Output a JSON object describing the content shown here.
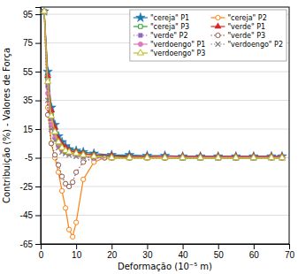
{
  "chart_data": {
    "type": "line",
    "x_label": "Deformação (10⁻⁵ m)",
    "y_label": "Contribuição (%) - Valores de Força",
    "xlim": [
      0,
      70
    ],
    "ylim": [
      -65,
      100
    ],
    "xticks": [
      0,
      10,
      20,
      30,
      40,
      50,
      60,
      70
    ],
    "yticks": [
      -65,
      -45,
      -25,
      -5,
      15,
      35,
      55,
      75,
      95
    ],
    "grid": true,
    "legend": "upper right",
    "series": [
      {
        "name": "\"cereja\" P1",
        "marker": "star",
        "line_style": "solid",
        "x": [
          1,
          2,
          3,
          4,
          5,
          6,
          7,
          8,
          10,
          12,
          15,
          20,
          25,
          30,
          35,
          40,
          45,
          50,
          55,
          60,
          65,
          68
        ],
        "values": [
          97,
          55,
          30,
          18,
          10,
          6,
          3,
          1,
          0,
          -1,
          -2,
          -3,
          -3,
          -3.5,
          -3.5,
          -4,
          -4,
          -4,
          -4,
          -4,
          -4,
          -4
        ]
      },
      {
        "name": "\"cereja\" P2",
        "marker": "circle-open",
        "line_style": "solid",
        "x": [
          1,
          2,
          3,
          4,
          5,
          6,
          7,
          8,
          9,
          10,
          12,
          15,
          18,
          20,
          25,
          30,
          35,
          40,
          45,
          50,
          55,
          60,
          65,
          68
        ],
        "values": [
          97,
          30,
          5,
          -5,
          -15,
          -28,
          -40,
          -55,
          -60,
          -50,
          -20,
          -8,
          -5,
          -5,
          -5,
          -5,
          -5,
          -5,
          -5,
          -5,
          -5,
          -5,
          -5,
          -5
        ]
      },
      {
        "name": "\"cereja\" P3",
        "marker": "square-open",
        "line_style": "solid",
        "x": [
          1,
          2,
          3,
          4,
          5,
          6,
          7,
          8,
          10,
          12,
          15,
          20,
          25,
          30,
          35,
          40,
          45,
          50,
          55,
          60,
          65,
          68
        ],
        "values": [
          97,
          50,
          25,
          14,
          7,
          3,
          1,
          0,
          -1,
          -2,
          -3,
          -4,
          -4.5,
          -4.5,
          -5,
          -5,
          -5,
          -5,
          -5,
          -5,
          -5,
          -5
        ]
      },
      {
        "name": "\"verde\" P1",
        "marker": "triangle",
        "line_style": "solid",
        "x": [
          1,
          2,
          3,
          4,
          5,
          6,
          7,
          8,
          10,
          12,
          15,
          20,
          25,
          30,
          35,
          40,
          45,
          50,
          55,
          60,
          65,
          68
        ],
        "values": [
          97,
          52,
          28,
          16,
          8,
          4,
          2,
          0,
          -1,
          -2,
          -3,
          -3.5,
          -4,
          -4,
          -4,
          -4,
          -4,
          -4,
          -4,
          -4,
          -4,
          -4
        ]
      },
      {
        "name": "\"verde\" P2",
        "marker": "square",
        "line_style": "dotted",
        "x": [
          1,
          2,
          3,
          4,
          5,
          6,
          7,
          8,
          10,
          12,
          15,
          20,
          25,
          30,
          35,
          40,
          45,
          50,
          55,
          60,
          65,
          68
        ],
        "values": [
          97,
          45,
          22,
          12,
          5,
          1,
          -1,
          -2,
          -3,
          -4,
          -4.5,
          -5,
          -5,
          -5,
          -5,
          -5,
          -5,
          -5,
          -5,
          -5,
          -5,
          -5
        ]
      },
      {
        "name": "\"verde\" P3",
        "marker": "circle-open",
        "line_style": "dotted",
        "x": [
          1,
          2,
          3,
          4,
          5,
          6,
          7,
          8,
          9,
          10,
          12,
          15,
          18,
          20,
          25,
          30,
          35,
          40,
          45,
          50,
          55,
          60,
          65,
          68
        ],
        "values": [
          97,
          25,
          5,
          -3,
          -10,
          -18,
          -23,
          -25,
          -22,
          -15,
          -8,
          -5,
          -5,
          -5,
          -5,
          -5,
          -5,
          -5,
          -5,
          -5,
          -5,
          -5,
          -5,
          -5
        ]
      },
      {
        "name": "\"verdoengo\" P1",
        "marker": "circle",
        "line_style": "solid",
        "x": [
          1,
          2,
          3,
          4,
          5,
          6,
          7,
          8,
          10,
          12,
          15,
          20,
          25,
          30,
          35,
          40,
          45,
          50,
          55,
          60,
          65,
          68
        ],
        "values": [
          97,
          40,
          18,
          9,
          3,
          0,
          -1,
          -2,
          -3,
          -4,
          -5,
          -5,
          -5,
          -5,
          -5,
          -5,
          -5,
          -5,
          -5,
          -5,
          -5,
          -5
        ]
      },
      {
        "name": "\"verdoengo\" P2",
        "marker": "x",
        "line_style": "dotted",
        "x": [
          1,
          2,
          3,
          4,
          5,
          6,
          7,
          8,
          10,
          12,
          15,
          20,
          25,
          30,
          35,
          40,
          45,
          50,
          55,
          60,
          65,
          68
        ],
        "values": [
          97,
          35,
          15,
          7,
          2,
          -1,
          -2,
          -3,
          -4,
          -4.5,
          -5,
          -5,
          -5,
          -5,
          -5,
          -5,
          -5,
          -5,
          -5,
          -5,
          -4.5,
          -4.5
        ]
      },
      {
        "name": "\"verdoengo\" P3",
        "marker": "triangle-open",
        "line_style": "solid",
        "x": [
          1,
          2,
          3,
          4,
          5,
          6,
          7,
          8,
          10,
          12,
          15,
          20,
          25,
          30,
          35,
          40,
          45,
          50,
          55,
          60,
          65,
          68
        ],
        "values": [
          97,
          48,
          24,
          13,
          6,
          2,
          0,
          -1,
          -2,
          -3,
          -4,
          -5,
          -5,
          -5,
          -5,
          -5,
          -5,
          -5,
          -5,
          -5,
          -5,
          -5
        ]
      }
    ]
  }
}
